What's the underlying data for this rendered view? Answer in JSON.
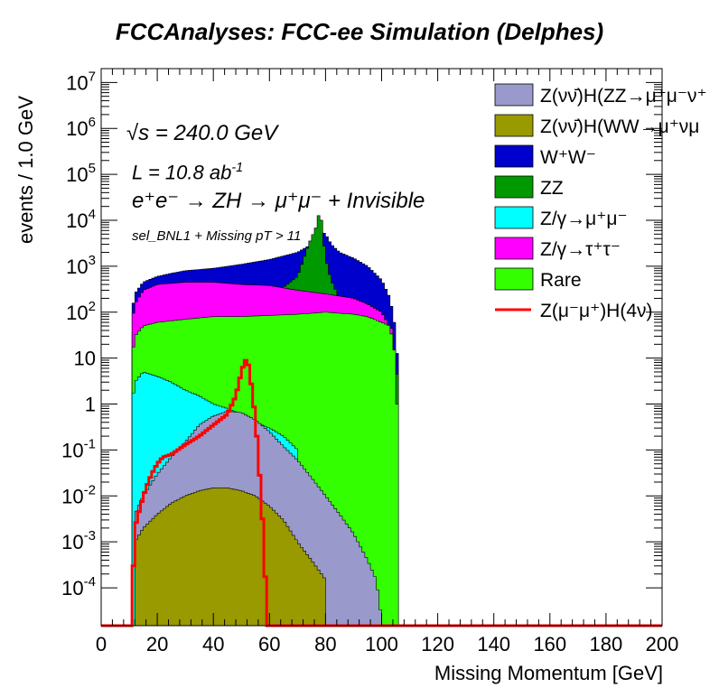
{
  "chart_data": {
    "type": "histogram-stacked",
    "title": "FCCAnalyses: FCC-ee Simulation (Delphes)",
    "xlabel": "Missing Momentum [GeV]",
    "ylabel": "events / 1.0 GeV",
    "xlim": [
      0,
      200
    ],
    "ylim": [
      1.5e-05,
      20000000
    ],
    "log_y": true,
    "x_ticks": [
      "0",
      "20",
      "40",
      "60",
      "80",
      "100",
      "120",
      "140",
      "160",
      "180",
      "200"
    ],
    "y_ticks": [
      {
        "v": 10000000,
        "base": "10",
        "exp": "7"
      },
      {
        "v": 1000000,
        "base": "10",
        "exp": "6"
      },
      {
        "v": 100000,
        "base": "10",
        "exp": "5"
      },
      {
        "v": 10000,
        "base": "10",
        "exp": "4"
      },
      {
        "v": 1000,
        "base": "10",
        "exp": "3"
      },
      {
        "v": 100,
        "base": "10",
        "exp": "2"
      },
      {
        "v": 10,
        "base": "10",
        "exp": ""
      },
      {
        "v": 1,
        "base": "1",
        "exp": ""
      },
      {
        "v": 0.1,
        "base": "10",
        "exp": "-1"
      },
      {
        "v": 0.01,
        "base": "10",
        "exp": "-2"
      },
      {
        "v": 0.001,
        "base": "10",
        "exp": "-3"
      },
      {
        "v": 0.0001,
        "base": "10",
        "exp": "-4"
      }
    ],
    "legend_position": "top-right",
    "series": [
      {
        "name": "Z(νν̄)H(ZZ→μ⁺μ⁻ν⁺",
        "color": "#9999cc",
        "points": [
          [
            10,
            0.0
          ],
          [
            11,
            0.0
          ],
          [
            12,
            0.004
          ],
          [
            15,
            0.01
          ],
          [
            20,
            0.03
          ],
          [
            25,
            0.07
          ],
          [
            30,
            0.15
          ],
          [
            35,
            0.35
          ],
          [
            40,
            0.55
          ],
          [
            45,
            0.7
          ],
          [
            50,
            0.65
          ],
          [
            55,
            0.45
          ],
          [
            60,
            0.25
          ],
          [
            65,
            0.12
          ],
          [
            70,
            0.06
          ],
          [
            75,
            0.025
          ],
          [
            80,
            0.01
          ],
          [
            85,
            0.004
          ],
          [
            90,
            0.0015
          ],
          [
            95,
            0.0004
          ],
          [
            98,
            0.00015
          ],
          [
            100,
            2e-05
          ]
        ]
      },
      {
        "name": "Z(νν̄)H(WW→μ⁺νμ",
        "color": "#999900",
        "points": [
          [
            10,
            0.0
          ],
          [
            12,
            0.001
          ],
          [
            15,
            0.002
          ],
          [
            20,
            0.004
          ],
          [
            25,
            0.007
          ],
          [
            30,
            0.01
          ],
          [
            35,
            0.013
          ],
          [
            40,
            0.015
          ],
          [
            45,
            0.015
          ],
          [
            50,
            0.013
          ],
          [
            55,
            0.01
          ],
          [
            60,
            0.006
          ],
          [
            65,
            0.003
          ],
          [
            70,
            0.001
          ],
          [
            75,
            0.0004
          ],
          [
            80,
            0.00015
          ]
        ]
      },
      {
        "name": "W⁺W⁻",
        "color": "#0000cc",
        "points": [
          [
            10,
            0.0
          ],
          [
            11,
            100
          ],
          [
            12,
            250
          ],
          [
            15,
            450
          ],
          [
            20,
            600
          ],
          [
            25,
            700
          ],
          [
            30,
            800
          ],
          [
            40,
            900
          ],
          [
            50,
            1100
          ],
          [
            60,
            1400
          ],
          [
            70,
            2000
          ],
          [
            75,
            3000
          ],
          [
            78,
            6000
          ],
          [
            80,
            5000
          ],
          [
            82,
            3000
          ],
          [
            85,
            2000
          ],
          [
            90,
            1500
          ],
          [
            95,
            1000
          ],
          [
            100,
            500
          ],
          [
            103,
            200
          ],
          [
            105,
            40
          ],
          [
            106,
            4
          ]
        ]
      },
      {
        "name": "ZZ",
        "color": "#009900",
        "points": [
          [
            10,
            0.0
          ],
          [
            11,
            20
          ],
          [
            12,
            60
          ],
          [
            15,
            100
          ],
          [
            20,
            120
          ],
          [
            30,
            140
          ],
          [
            40,
            150
          ],
          [
            50,
            160
          ],
          [
            60,
            200
          ],
          [
            70,
            600
          ],
          [
            74,
            3000
          ],
          [
            77,
            8000
          ],
          [
            78,
            20000
          ],
          [
            79,
            5000
          ],
          [
            80,
            1500
          ],
          [
            82,
            500
          ],
          [
            85,
            200
          ],
          [
            90,
            100
          ],
          [
            95,
            60
          ],
          [
            100,
            30
          ],
          [
            105,
            10
          ],
          [
            106,
            2
          ]
        ]
      },
      {
        "name": "Z/γ→μ⁺μ⁻",
        "color": "#00ffff",
        "points": [
          [
            10,
            0.0
          ],
          [
            11,
            1
          ],
          [
            12,
            3
          ],
          [
            15,
            5
          ],
          [
            20,
            4
          ],
          [
            25,
            3
          ],
          [
            30,
            2
          ],
          [
            35,
            1.5
          ],
          [
            40,
            1
          ],
          [
            45,
            0.8
          ],
          [
            50,
            0.6
          ],
          [
            55,
            0.4
          ],
          [
            60,
            0.3
          ],
          [
            65,
            0.2
          ],
          [
            70,
            0.1
          ]
        ]
      },
      {
        "name": "Z/γ→τ⁺τ⁻",
        "color": "#ff00ff",
        "points": [
          [
            10,
            0.0
          ],
          [
            11,
            60
          ],
          [
            12,
            150
          ],
          [
            15,
            300
          ],
          [
            20,
            400
          ],
          [
            30,
            450
          ],
          [
            40,
            450
          ],
          [
            50,
            400
          ],
          [
            60,
            380
          ],
          [
            70,
            300
          ],
          [
            80,
            250
          ],
          [
            90,
            200
          ],
          [
            95,
            150
          ],
          [
            100,
            100
          ],
          [
            102,
            60
          ],
          [
            104,
            40
          ]
        ]
      },
      {
        "name": "Rare",
        "color": "#33ff00",
        "points": [
          [
            10,
            0.0
          ],
          [
            11,
            10
          ],
          [
            12,
            30
          ],
          [
            15,
            50
          ],
          [
            20,
            60
          ],
          [
            30,
            70
          ],
          [
            40,
            80
          ],
          [
            50,
            80
          ],
          [
            60,
            85
          ],
          [
            70,
            90
          ],
          [
            80,
            100
          ],
          [
            90,
            90
          ],
          [
            95,
            80
          ],
          [
            100,
            60
          ],
          [
            103,
            50
          ],
          [
            105,
            10
          ],
          [
            106,
            0.1
          ]
        ]
      },
      {
        "name": "Z(μ⁻μ⁺)H(4ν)",
        "color": "#ff0000",
        "points": [
          [
            11,
            0.0
          ],
          [
            11.5,
            0.0003
          ],
          [
            12,
            0.002
          ],
          [
            14,
            0.006
          ],
          [
            16,
            0.015
          ],
          [
            18,
            0.03
          ],
          [
            20,
            0.05
          ],
          [
            22,
            0.07
          ],
          [
            25,
            0.08
          ],
          [
            30,
            0.13
          ],
          [
            35,
            0.2
          ],
          [
            40,
            0.35
          ],
          [
            45,
            0.6
          ],
          [
            48,
            1.5
          ],
          [
            50,
            5
          ],
          [
            51,
            8
          ],
          [
            52,
            10
          ],
          [
            53,
            5
          ],
          [
            54,
            1.5
          ],
          [
            55,
            0.5
          ],
          [
            56,
            0.08
          ],
          [
            57,
            0.01
          ],
          [
            58,
            0.001
          ],
          [
            59,
            3e-05
          ]
        ]
      }
    ],
    "annotations": {
      "sqrt_s": "√s = 240.0 GeV",
      "lumi": "L = 10.8 ab",
      "lumi_exp": "-1",
      "process": "e⁺e⁻ → ZH → μ⁺μ⁻ + Invisible",
      "selection": "sel_BNL1 + Missing pT > 11"
    }
  }
}
